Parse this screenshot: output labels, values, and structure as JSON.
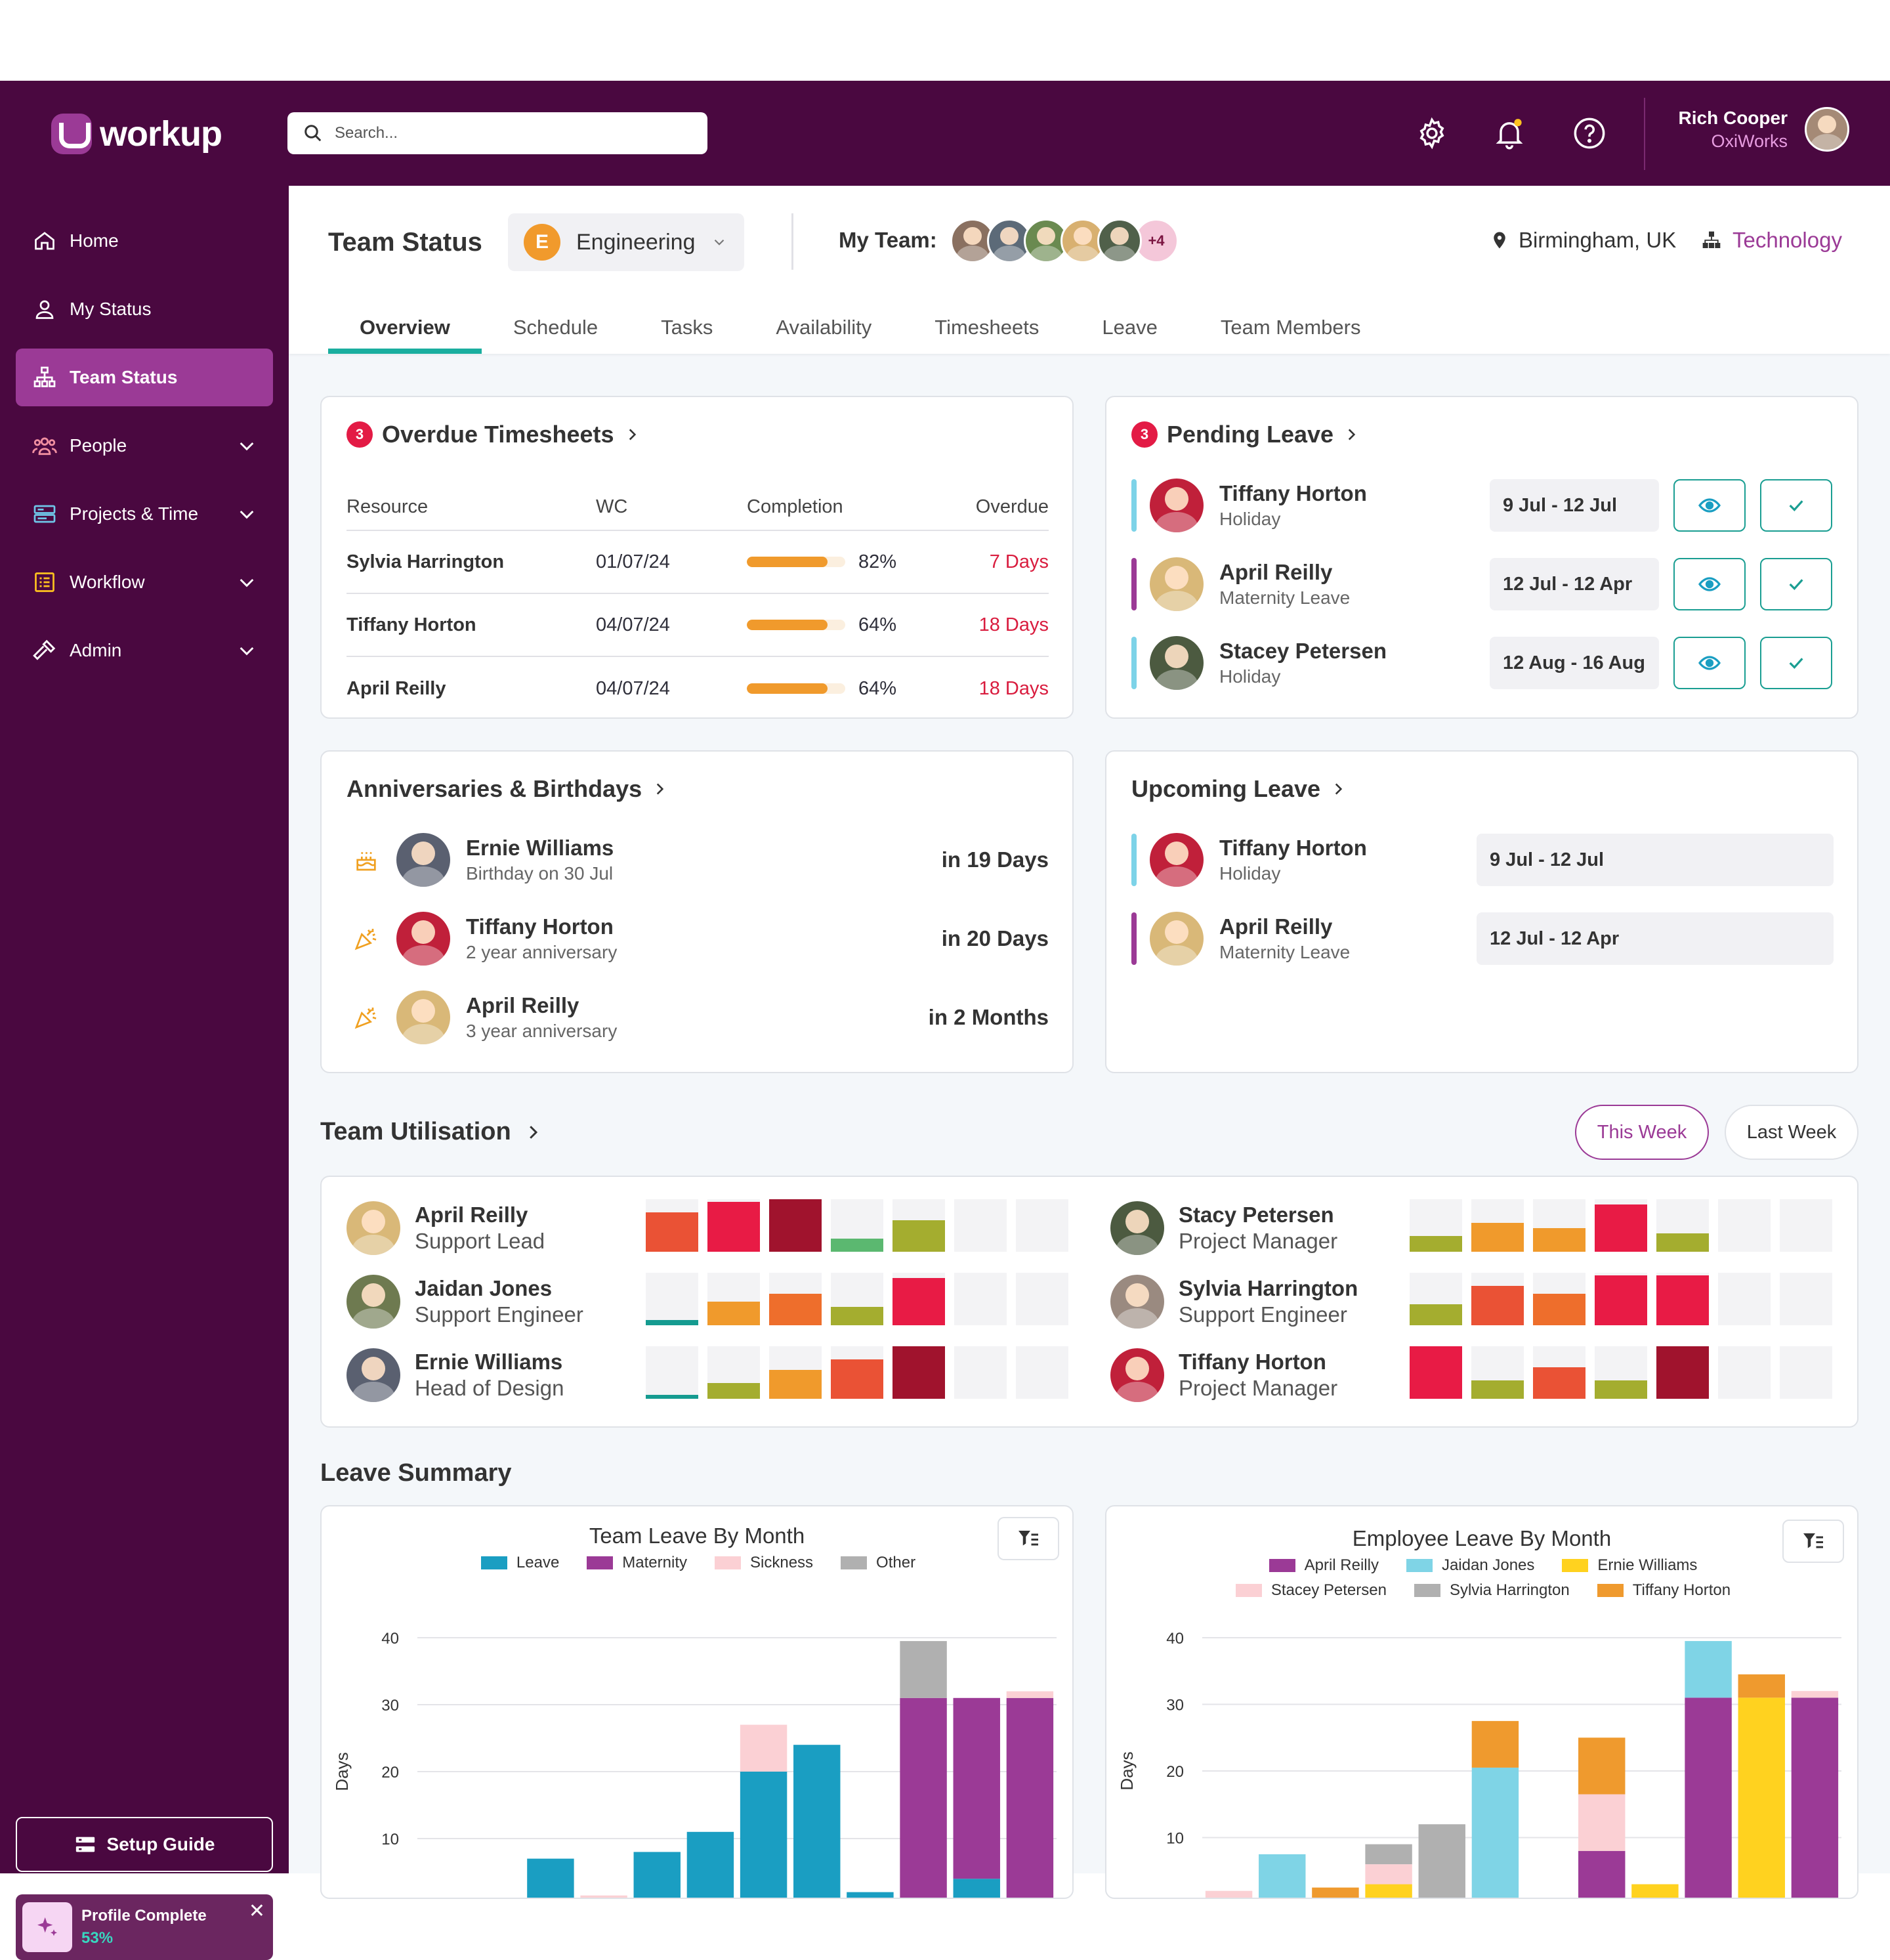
{
  "app": {
    "logo": "workup"
  },
  "search": {
    "placeholder": "Search..."
  },
  "user": {
    "name": "Rich Cooper",
    "company": "OxiWorks"
  },
  "nav": [
    {
      "label": "Home",
      "icon": "home-icon"
    },
    {
      "label": "My Status",
      "icon": "user-icon"
    },
    {
      "label": "Team Status",
      "icon": "org-chart-icon",
      "active": true
    },
    {
      "label": "People",
      "icon": "people-icon"
    },
    {
      "label": "Projects & Time",
      "icon": "projects-icon"
    },
    {
      "label": "Workflow",
      "icon": "checklist-icon"
    },
    {
      "label": "Admin",
      "icon": "hammer-icon"
    }
  ],
  "setup": {
    "label": "Setup Guide"
  },
  "profile": {
    "label": "Profile Complete",
    "value": "53%"
  },
  "header": {
    "title": "Team Status",
    "dept_initial": "E",
    "dept": "Engineering",
    "my_team": "My Team:",
    "team_extra": "+4",
    "location": "Birmingham, UK",
    "division": "Technology"
  },
  "tabs": [
    "Overview",
    "Schedule",
    "Tasks",
    "Availability",
    "Timesheets",
    "Leave",
    "Team Members"
  ],
  "overdue": {
    "count": "3",
    "title": "Overdue Timesheets",
    "columns": [
      "Resource",
      "WC",
      "Completion",
      "Overdue"
    ],
    "rows": [
      {
        "name": "Sylvia Harrington",
        "wc": "01/07/24",
        "pct": "82%",
        "overdue": "7 Days"
      },
      {
        "name": "Tiffany Horton",
        "wc": "04/07/24",
        "pct": "64%",
        "overdue": "18 Days"
      },
      {
        "name": "April Reilly",
        "wc": "04/07/24",
        "pct": "64%",
        "overdue": "18 Days"
      }
    ]
  },
  "pending": {
    "count": "3",
    "title": "Pending Leave",
    "rows": [
      {
        "name": "Tiffany Horton",
        "type": "Holiday",
        "dates": "9 Jul - 12 Jul",
        "color": "#7dd3e8"
      },
      {
        "name": "April Reilly",
        "type": "Maternity Leave",
        "dates": "12 Jul - 12 Apr",
        "color": "#9b3a96"
      },
      {
        "name": "Stacey Petersen",
        "type": "Holiday",
        "dates": "12 Aug - 16 Aug",
        "color": "#7dd3e8"
      }
    ]
  },
  "anniv": {
    "title": "Anniversaries & Birthdays",
    "rows": [
      {
        "name": "Ernie Williams",
        "detail": "Birthday on 30 Jul",
        "when": "in 19 Days",
        "icon": "cake-icon"
      },
      {
        "name": "Tiffany Horton",
        "detail": "2 year anniversary",
        "when": "in 20 Days",
        "icon": "party-popper-icon"
      },
      {
        "name": "April Reilly",
        "detail": "3 year anniversary",
        "when": "in 2 Months",
        "icon": "party-popper-icon"
      }
    ]
  },
  "upcoming": {
    "title": "Upcoming Leave",
    "rows": [
      {
        "name": "Tiffany Horton",
        "type": "Holiday",
        "dates": "9 Jul - 12 Jul",
        "color": "#7dd3e8"
      },
      {
        "name": "April Reilly",
        "type": "Maternity Leave",
        "dates": "12 Jul - 12 Apr",
        "color": "#9b3a96"
      }
    ]
  },
  "utilisation": {
    "title": "Team Utilisation",
    "this_week": "This Week",
    "last_week": "Last Week",
    "people": [
      {
        "name": "April Reilly",
        "role": "Support Lead",
        "cells": [
          0.75,
          0.95,
          1.0,
          0.25,
          0.6,
          0,
          0
        ],
        "colors": [
          "#ea5235",
          "#e81b45",
          "#a0132d",
          "#5bb870",
          "#a4ad2f",
          "",
          ""
        ]
      },
      {
        "name": "Jaidan Jones",
        "role": "Support Engineer",
        "cells": [
          0.1,
          0.45,
          0.6,
          0.35,
          0.9,
          0,
          0
        ],
        "colors": [
          "#159b90",
          "#f09a2c",
          "#ee6e2c",
          "#a4ad2f",
          "#e81b45",
          "",
          ""
        ]
      },
      {
        "name": "Ernie Williams",
        "role": "Head of Design",
        "cells": [
          0.08,
          0.3,
          0.55,
          0.75,
          1.0,
          0,
          0
        ],
        "colors": [
          "#159b90",
          "#a4ad2f",
          "#f09a2c",
          "#ea5235",
          "#a0132d",
          "",
          ""
        ]
      },
      {
        "name": "Stacy Petersen",
        "role": "Project Manager",
        "cells": [
          0.3,
          0.55,
          0.45,
          0.9,
          0.35,
          0,
          0
        ],
        "colors": [
          "#a4ad2f",
          "#f09a2c",
          "#f09a2c",
          "#e81b45",
          "#a4ad2f",
          "",
          ""
        ]
      },
      {
        "name": "Sylvia Harrington",
        "role": "Support Engineer",
        "cells": [
          0.4,
          0.75,
          0.6,
          0.95,
          0.95,
          0,
          0
        ],
        "colors": [
          "#a4ad2f",
          "#ea5235",
          "#ee6e2c",
          "#e81b45",
          "#e81b45",
          "",
          ""
        ]
      },
      {
        "name": "Tiffany Horton",
        "role": "Project Manager",
        "cells": [
          1.0,
          0.35,
          0.6,
          0.35,
          1.0,
          0,
          0
        ],
        "colors": [
          "#e81b45",
          "#a4ad2f",
          "#ea5235",
          "#a4ad2f",
          "#a0132d",
          "",
          ""
        ]
      }
    ]
  },
  "leave_summary": {
    "title": "Leave Summary"
  },
  "chart_data": [
    {
      "type": "bar",
      "title": "Team Leave By Month",
      "ylabel": "Days",
      "ylim": [
        0,
        40
      ],
      "yticks": [
        0,
        10,
        20,
        30,
        40
      ],
      "stacked": true,
      "series": [
        {
          "name": "Leave",
          "color": "#1a9ec2",
          "values": [
            0,
            0,
            7,
            0,
            8,
            11,
            20,
            24,
            2,
            0,
            4,
            0
          ]
        },
        {
          "name": "Maternity",
          "color": "#9b3a96",
          "values": [
            0,
            0,
            0,
            0,
            0,
            0,
            0,
            0,
            0,
            31,
            27,
            31
          ]
        },
        {
          "name": "Sickness",
          "color": "#fbd0d4",
          "values": [
            1,
            0,
            0,
            1.5,
            0,
            0,
            7,
            0,
            0,
            0,
            0,
            1
          ]
        },
        {
          "name": "Other",
          "color": "#b0b0b0",
          "values": [
            0,
            0,
            0,
            0,
            0,
            0,
            0,
            0,
            0,
            8.5,
            0,
            0
          ]
        }
      ]
    },
    {
      "type": "bar",
      "title": "Employee Leave By Month",
      "ylabel": "Days",
      "ylim": [
        0,
        40
      ],
      "yticks": [
        0,
        10,
        20,
        30,
        40
      ],
      "stacked": true,
      "series": [
        {
          "name": "April Reilly",
          "color": "#9b3a96",
          "values": [
            0,
            0,
            0,
            0,
            0,
            0,
            0,
            8,
            0,
            31,
            0,
            31
          ]
        },
        {
          "name": "Jaidan Jones",
          "color": "#7fd4e6",
          "values": [
            0,
            7.5,
            0,
            0,
            0,
            20.5,
            0,
            0,
            0,
            8.5,
            0,
            0
          ]
        },
        {
          "name": "Ernie Williams",
          "color": "#ffd21f",
          "values": [
            0,
            0,
            0,
            3,
            0,
            0,
            0,
            0,
            3,
            0,
            31,
            0
          ]
        },
        {
          "name": "Stacey Petersen",
          "color": "#fbd0d4",
          "values": [
            2,
            0,
            0,
            3,
            0,
            0,
            0,
            8.5,
            0,
            0,
            0,
            1
          ]
        },
        {
          "name": "Sylvia Harrington",
          "color": "#b0b0b0",
          "values": [
            0,
            0,
            0,
            3,
            12,
            0,
            0,
            0,
            0,
            0,
            0,
            0
          ]
        },
        {
          "name": "Tiffany Horton",
          "color": "#ef9a2e",
          "values": [
            0,
            0,
            2.5,
            0,
            0,
            7,
            0,
            8.5,
            0,
            0,
            3.5,
            0
          ]
        }
      ]
    }
  ]
}
